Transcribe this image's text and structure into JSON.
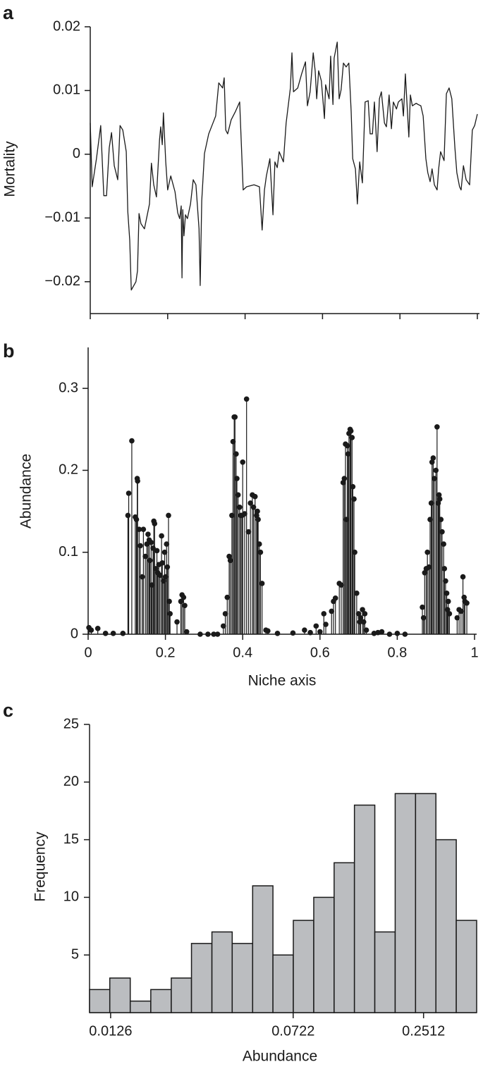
{
  "chart_data": [
    {
      "type": "line",
      "panel_label": "a",
      "ylabel": "Mortality",
      "color": "#1a1a1a",
      "xlim": [
        0,
        1
      ],
      "xticks": [
        0,
        0.2,
        0.4,
        0.6,
        0.8,
        1
      ],
      "xtick_labels": false,
      "ylim": [
        -0.025,
        0.02
      ],
      "yticks": [
        {
          "value": -0.02,
          "label": "−0.02"
        },
        {
          "value": -0.01,
          "label": "−0.01"
        },
        0,
        0.01,
        0.02
      ],
      "x": [
        0,
        0.005,
        0.016,
        0.027,
        0.035,
        0.042,
        0.049,
        0.055,
        0.062,
        0.071,
        0.077,
        0.084,
        0.093,
        0.097,
        0.102,
        0.106,
        0.118,
        0.122,
        0.126,
        0.131,
        0.14,
        0.153,
        0.158,
        0.164,
        0.171,
        0.179,
        0.182,
        0.186,
        0.189,
        0.195,
        0.2,
        0.208,
        0.219,
        0.226,
        0.231,
        0.235,
        0.237,
        0.239,
        0.242,
        0.246,
        0.251,
        0.259,
        0.266,
        0.273,
        0.281,
        0.284,
        0.288,
        0.295,
        0.306,
        0.317,
        0.324,
        0.332,
        0.342,
        0.346,
        0.35,
        0.355,
        0.364,
        0.375,
        0.386,
        0.395,
        0.404,
        0.423,
        0.437,
        0.444,
        0.45,
        0.455,
        0.464,
        0.472,
        0.477,
        0.483,
        0.488,
        0.499,
        0.506,
        0.517,
        0.521,
        0.525,
        0.536,
        0.546,
        0.556,
        0.561,
        0.568,
        0.576,
        0.581,
        0.585,
        0.59,
        0.597,
        0.605,
        0.608,
        0.617,
        0.621,
        0.627,
        0.63,
        0.638,
        0.643,
        0.648,
        0.654,
        0.661,
        0.668,
        0.674,
        0.678,
        0.685,
        0.69,
        0.696,
        0.703,
        0.71,
        0.718,
        0.723,
        0.729,
        0.734,
        0.741,
        0.747,
        0.752,
        0.76,
        0.765,
        0.772,
        0.778,
        0.783,
        0.791,
        0.796,
        0.805,
        0.809,
        0.814,
        0.823,
        0.827,
        0.832,
        0.842,
        0.847,
        0.854,
        0.86,
        0.867,
        0.872,
        0.878,
        0.883,
        0.889,
        0.896,
        0.9,
        0.905,
        0.914,
        0.92,
        0.927,
        0.934,
        0.942,
        0.947,
        0.954,
        0.958,
        0.964,
        0.971,
        0.98,
        0.987,
        0.993,
        1
      ],
      "y": [
        0.0049,
        -0.0051,
        -0.0007,
        0.0045,
        -0.0065,
        -0.0065,
        0.001,
        0.0034,
        -0.0018,
        -0.004,
        0.0045,
        0.0038,
        0.0004,
        -0.009,
        -0.0135,
        -0.0213,
        -0.02,
        -0.0183,
        -0.0093,
        -0.0109,
        -0.0117,
        -0.0078,
        -0.0014,
        -0.0048,
        -0.0067,
        0.0023,
        0.0043,
        0.0015,
        0.0065,
        -0.0012,
        -0.0056,
        -0.0034,
        -0.0059,
        -0.0092,
        -0.0101,
        -0.0081,
        -0.0194,
        -0.0087,
        -0.0128,
        -0.0095,
        -0.0101,
        -0.0078,
        -0.004,
        -0.0048,
        -0.0117,
        -0.0206,
        -0.0073,
        0.0001,
        0.0032,
        0.0049,
        0.006,
        0.0112,
        0.0104,
        0.012,
        0.0038,
        0.0032,
        0.0054,
        0.0067,
        0.0082,
        -0.0056,
        -0.0051,
        -0.0048,
        -0.0051,
        -0.0119,
        -0.0056,
        -0.0034,
        -0.0007,
        -0.0095,
        -0.0012,
        -0.0021,
        0.0004,
        -0.0012,
        0.0049,
        0.0104,
        0.0159,
        0.0098,
        0.0104,
        0.0126,
        0.0145,
        0.0076,
        0.0098,
        0.0159,
        0.0131,
        0.0087,
        0.0131,
        0.0115,
        0.0056,
        0.0109,
        0.0087,
        0.0154,
        0.0078,
        0.0151,
        0.0176,
        0.0087,
        0.0101,
        0.0143,
        0.0137,
        0.0143,
        0.0067,
        -0.0007,
        -0.0023,
        -0.0078,
        -0.0012,
        -0.0045,
        0.0082,
        0.0084,
        0.0032,
        0.0032,
        0.0082,
        0.0004,
        0.0087,
        0.0098,
        0.0049,
        0.0043,
        0.0093,
        0.004,
        0.0082,
        0.0071,
        0.0082,
        0.0087,
        0.006,
        0.0126,
        0.0027,
        0.0093,
        0.0076,
        0.008,
        0.0078,
        0.0076,
        0.006,
        -0.0007,
        -0.0029,
        -0.0043,
        -0.0023,
        -0.0048,
        -0.0056,
        -0.0023,
        0.0004,
        -0.001,
        0.0095,
        0.0104,
        0.0087,
        0.001,
        -0.0029,
        -0.0051,
        -0.0056,
        -0.0018,
        -0.004,
        -0.0048,
        0.0038,
        0.0045,
        0.0063
      ]
    },
    {
      "type": "stem",
      "panel_label": "b",
      "xlabel": "Niche axis",
      "ylabel": "Abundance",
      "color": "#1a1a1a",
      "xlim": [
        0,
        1
      ],
      "xticks": [
        0,
        0.2,
        0.4,
        0.6,
        0.8,
        1
      ],
      "xtick_labels": true,
      "ylim": [
        0,
        0.35
      ],
      "yticks": [
        0,
        0.1,
        0.2,
        0.3
      ],
      "x": [
        0.002,
        0.008,
        0.025,
        0.045,
        0.065,
        0.09,
        0.103,
        0.105,
        0.113,
        0.122,
        0.125,
        0.127,
        0.128,
        0.132,
        0.135,
        0.14,
        0.143,
        0.148,
        0.152,
        0.155,
        0.158,
        0.16,
        0.163,
        0.165,
        0.168,
        0.17,
        0.172,
        0.175,
        0.178,
        0.18,
        0.183,
        0.186,
        0.19,
        0.192,
        0.195,
        0.198,
        0.2,
        0.203,
        0.205,
        0.208,
        0.21,
        0.212,
        0.23,
        0.24,
        0.243,
        0.247,
        0.25,
        0.255,
        0.29,
        0.31,
        0.325,
        0.335,
        0.35,
        0.355,
        0.36,
        0.365,
        0.368,
        0.372,
        0.375,
        0.378,
        0.38,
        0.383,
        0.385,
        0.388,
        0.392,
        0.395,
        0.398,
        0.4,
        0.405,
        0.41,
        0.415,
        0.42,
        0.425,
        0.428,
        0.432,
        0.436,
        0.438,
        0.44,
        0.443,
        0.446,
        0.45,
        0.46,
        0.465,
        0.49,
        0.53,
        0.56,
        0.575,
        0.59,
        0.6,
        0.61,
        0.615,
        0.63,
        0.635,
        0.64,
        0.65,
        0.655,
        0.66,
        0.663,
        0.666,
        0.668,
        0.671,
        0.673,
        0.675,
        0.678,
        0.68,
        0.683,
        0.685,
        0.688,
        0.69,
        0.695,
        0.7,
        0.703,
        0.705,
        0.71,
        0.713,
        0.716,
        0.72,
        0.74,
        0.75,
        0.76,
        0.78,
        0.8,
        0.82,
        0.865,
        0.868,
        0.871,
        0.875,
        0.878,
        0.882,
        0.885,
        0.888,
        0.89,
        0.893,
        0.896,
        0.9,
        0.903,
        0.906,
        0.908,
        0.91,
        0.913,
        0.916,
        0.92,
        0.922,
        0.925,
        0.928,
        0.93,
        0.932,
        0.935,
        0.955,
        0.96,
        0.965,
        0.97,
        0.973,
        0.975,
        0.98
      ],
      "y": [
        0.008,
        0.005,
        0.007,
        0.001,
        0.001,
        0.001,
        0.145,
        0.172,
        0.236,
        0.143,
        0.14,
        0.19,
        0.187,
        0.128,
        0.108,
        0.07,
        0.128,
        0.095,
        0.11,
        0.122,
        0.115,
        0.09,
        0.112,
        0.06,
        0.105,
        0.138,
        0.135,
        0.08,
        0.102,
        0.075,
        0.085,
        0.072,
        0.12,
        0.087,
        0.065,
        0.1,
        0.07,
        0.11,
        0.082,
        0.145,
        0.04,
        0.025,
        0.015,
        0.04,
        0.048,
        0.045,
        0.035,
        0.003,
        0.0,
        0.0,
        0.0,
        0.0,
        0.01,
        0.025,
        0.045,
        0.095,
        0.09,
        0.145,
        0.235,
        0.265,
        0.265,
        0.22,
        0.19,
        0.17,
        0.155,
        0.145,
        0.145,
        0.21,
        0.147,
        0.287,
        0.125,
        0.16,
        0.17,
        0.155,
        0.168,
        0.145,
        0.15,
        0.14,
        0.11,
        0.1,
        0.062,
        0.005,
        0.004,
        0.001,
        0.0015,
        0.005,
        0.002,
        0.01,
        0.003,
        0.025,
        0.012,
        0.028,
        0.04,
        0.044,
        0.062,
        0.06,
        0.185,
        0.19,
        0.232,
        0.14,
        0.23,
        0.22,
        0.245,
        0.25,
        0.248,
        0.24,
        0.18,
        0.165,
        0.1,
        0.05,
        0.025,
        0.015,
        0.02,
        0.03,
        0.015,
        0.025,
        0.005,
        0.001,
        0.002,
        0.003,
        0.0,
        0.001,
        0.0,
        0.033,
        0.02,
        0.075,
        0.08,
        0.1,
        0.082,
        0.14,
        0.16,
        0.21,
        0.215,
        0.19,
        0.2,
        0.253,
        0.16,
        0.17,
        0.165,
        0.14,
        0.125,
        0.11,
        0.08,
        0.065,
        0.05,
        0.03,
        0.04,
        0.025,
        0.02,
        0.03,
        0.028,
        0.07,
        0.045,
        0.04,
        0.038
      ]
    },
    {
      "type": "histogram",
      "panel_label": "c",
      "xlabel": "Abundance",
      "ylabel": "Frequency",
      "color": "#bbbdc0",
      "edgecolor": "#1a1a1a",
      "xscale": "log",
      "xlim": [
        0.0103,
        0.4174
      ],
      "xticks": [
        0.0126,
        0.0722,
        0.2512
      ],
      "xtick_labels": true,
      "ylim": [
        0,
        25
      ],
      "yticks": [
        5,
        10,
        15,
        20,
        25
      ],
      "bins": [
        0.0103,
        0.0125,
        0.0152,
        0.0185,
        0.0225,
        0.0273,
        0.0332,
        0.0403,
        0.049,
        0.0595,
        0.0723,
        0.0879,
        0.1068,
        0.1297,
        0.1576,
        0.1915,
        0.2327,
        0.2827,
        0.3435,
        0.4174
      ],
      "counts": [
        2,
        3,
        1,
        2,
        3,
        6,
        7,
        6,
        11,
        5,
        8,
        10,
        13,
        18,
        7,
        19,
        19,
        15,
        8
      ]
    }
  ]
}
